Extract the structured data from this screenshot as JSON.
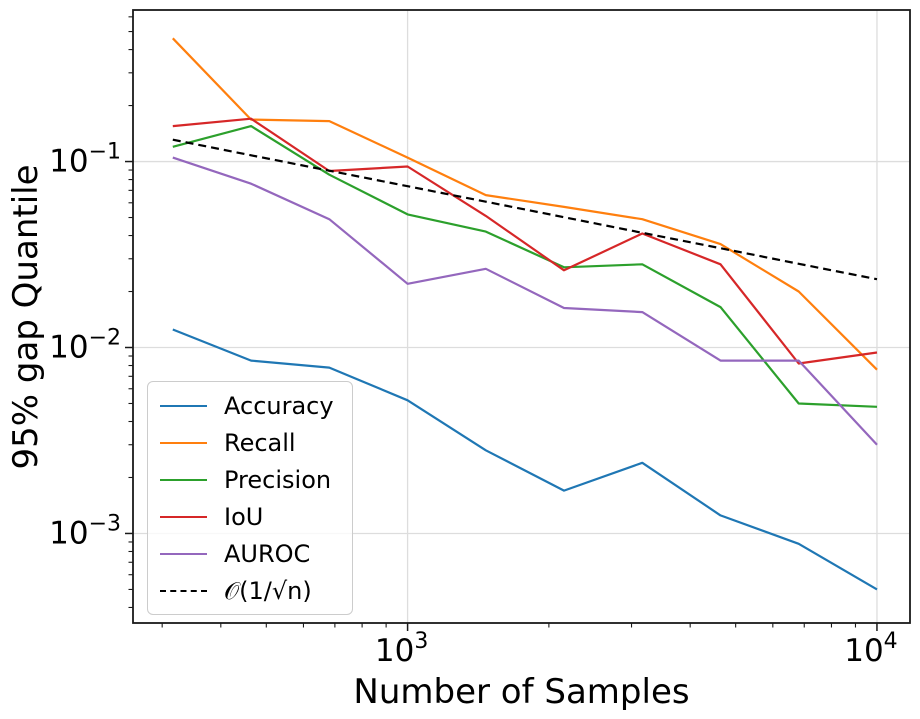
{
  "figure": {
    "xlabel": "Number of Samples",
    "ylabel": "95% gap Quantile"
  },
  "chart_data": {
    "type": "line",
    "title": "",
    "xlabel": "Number of Samples",
    "ylabel": "95% gap Quantile",
    "x_scale": "log",
    "y_scale": "log",
    "grid": true,
    "grid_color": "#dddddd",
    "legend_position": "lower-left",
    "xlim": [
      260,
      11760
    ],
    "ylim": [
      0.00033,
      0.653
    ],
    "x_ticks": [
      {
        "value": 1000,
        "base": "10",
        "exp": "3"
      },
      {
        "value": 10000,
        "base": "10",
        "exp": "4"
      }
    ],
    "y_ticks": [
      {
        "value": 0.1,
        "base": "10",
        "exp": "−1"
      },
      {
        "value": 0.01,
        "base": "10",
        "exp": "−2"
      },
      {
        "value": 0.001,
        "base": "10",
        "exp": "−3"
      }
    ],
    "x": [
      316,
      464,
      681,
      1000,
      1468,
      2154,
      3162,
      4642,
      6813,
      10000
    ],
    "series": [
      {
        "name": "Accuracy",
        "color": "#1f77b4",
        "dash": false,
        "values": [
          0.0125,
          0.0085,
          0.0078,
          0.0052,
          0.0028,
          0.0017,
          0.0024,
          0.00125,
          0.00088,
          0.0005
        ]
      },
      {
        "name": "Recall",
        "color": "#ff7f0e",
        "dash": false,
        "values": [
          0.46,
          0.168,
          0.165,
          0.105,
          0.066,
          0.057,
          0.049,
          0.036,
          0.02,
          0.0076
        ]
      },
      {
        "name": "Precision",
        "color": "#2ca02c",
        "dash": false,
        "values": [
          0.12,
          0.155,
          0.085,
          0.052,
          0.042,
          0.027,
          0.028,
          0.0165,
          0.005,
          0.0048
        ]
      },
      {
        "name": "IoU",
        "color": "#d62728",
        "dash": false,
        "values": [
          0.155,
          0.17,
          0.089,
          0.094,
          0.051,
          0.026,
          0.041,
          0.028,
          0.0082,
          0.0094
        ]
      },
      {
        "name": "AUROC",
        "color": "#9467bd",
        "dash": false,
        "values": [
          0.105,
          0.076,
          0.049,
          0.022,
          0.0265,
          0.0163,
          0.0155,
          0.0085,
          0.0085,
          0.003
        ]
      },
      {
        "name": "𝒪(1/√n)",
        "color": "#000000",
        "dash": true,
        "values": [
          0.131,
          0.108,
          0.0893,
          0.0737,
          0.0608,
          0.0502,
          0.0414,
          0.0342,
          0.0282,
          0.0233
        ]
      }
    ]
  }
}
